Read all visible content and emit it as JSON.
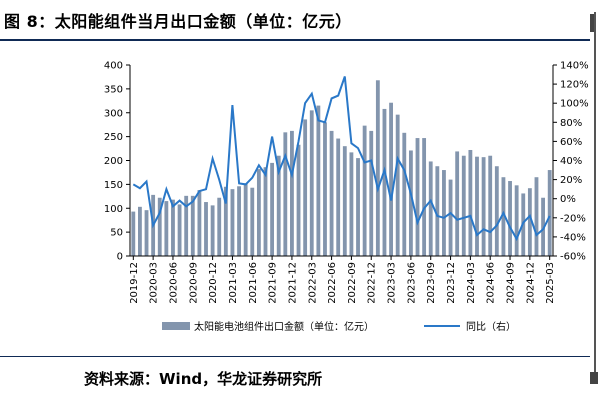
{
  "figure": {
    "title": "图 8：太阳能组件当月出口金额（单位：亿元）",
    "source": "资料来源：Wind，华龙证券研究所"
  },
  "colors": {
    "bar": "#8395ad",
    "line": "#2a78c8",
    "rule": "#0f2a55"
  },
  "chart_data": {
    "type": "bar",
    "title": "",
    "x": [
      "2019-12",
      "2020-01",
      "2020-02",
      "2020-03",
      "2020-04",
      "2020-05",
      "2020-06",
      "2020-07",
      "2020-08",
      "2020-09",
      "2020-10",
      "2020-11",
      "2020-12",
      "2021-01",
      "2021-02",
      "2021-03",
      "2021-04",
      "2021-05",
      "2021-06",
      "2021-07",
      "2021-08",
      "2021-09",
      "2021-10",
      "2021-11",
      "2021-12",
      "2022-01",
      "2022-02",
      "2022-03",
      "2022-04",
      "2022-05",
      "2022-06",
      "2022-07",
      "2022-08",
      "2022-09",
      "2022-10",
      "2022-11",
      "2022-12",
      "2023-01",
      "2023-02",
      "2023-03",
      "2023-04",
      "2023-05",
      "2023-06",
      "2023-07",
      "2023-08",
      "2023-09",
      "2023-10",
      "2023-11",
      "2023-12",
      "2024-01",
      "2024-02",
      "2024-03",
      "2024-04",
      "2024-05",
      "2024-06",
      "2024-07",
      "2024-08",
      "2024-09",
      "2024-10",
      "2024-11",
      "2024-12",
      "2025-01",
      "2025-02",
      "2025-03"
    ],
    "x_tick_labels": [
      "2019-12",
      "2020-03",
      "2020-06",
      "2020-09",
      "2020-12",
      "2021-03",
      "2021-06",
      "2021-09",
      "2021-12",
      "2022-03",
      "2022-06",
      "2022-09",
      "2022-12",
      "2023-03",
      "2023-06",
      "2023-09",
      "2023-12",
      "2024-03",
      "2024-06",
      "2024-09",
      "2024-12",
      "2025-03"
    ],
    "series": [
      {
        "name": "太阳能电池组件出口金额（单位：亿元）",
        "type": "bar",
        "axis": "left",
        "values": [
          93,
          103,
          96,
          128,
          122,
          115,
          118,
          108,
          126,
          126,
          138,
          113,
          106,
          122,
          145,
          140,
          146,
          152,
          143,
          182,
          186,
          195,
          210,
          259,
          262,
          233,
          286,
          305,
          315,
          280,
          262,
          246,
          230,
          217,
          205,
          273,
          262,
          368,
          308,
          321,
          296,
          258,
          221,
          247,
          247,
          198,
          188,
          180,
          160,
          219,
          210,
          222,
          208,
          207,
          210,
          188,
          165,
          157,
          148,
          131,
          142,
          165,
          122,
          180
        ]
      },
      {
        "name": "同比（右）",
        "type": "line",
        "axis": "right",
        "values": [
          15,
          11,
          18,
          -28,
          -15,
          10,
          -8,
          -2,
          -8,
          -3,
          8,
          10,
          42,
          20,
          -5,
          98,
          16,
          15,
          22,
          35,
          25,
          65,
          28,
          45,
          25,
          60,
          100,
          110,
          82,
          80,
          105,
          108,
          128,
          58,
          53,
          38,
          40,
          10,
          30,
          -2,
          42,
          30,
          5,
          -25,
          -10,
          -2,
          -18,
          -20,
          -15,
          -22,
          -20,
          -18,
          -38,
          -32,
          -35,
          -28,
          -15,
          -30,
          -42,
          -25,
          -18,
          -38,
          -32,
          -18
        ]
      }
    ],
    "y_left": {
      "ylim": [
        0,
        400
      ],
      "ticks": [
        "0",
        "50",
        "100",
        "150",
        "200",
        "250",
        "300",
        "350",
        "400"
      ]
    },
    "y_right": {
      "ylim": [
        -60,
        140
      ],
      "ticks": [
        "-60%",
        "-40%",
        "-20%",
        "0%",
        "20%",
        "40%",
        "60%",
        "80%",
        "100%",
        "120%",
        "140%"
      ]
    },
    "legend": {
      "placement": "bottom",
      "bar_label": "太阳能电池组件出口金额（单位：亿元）",
      "line_label": "同比（右）"
    },
    "grid": false
  }
}
